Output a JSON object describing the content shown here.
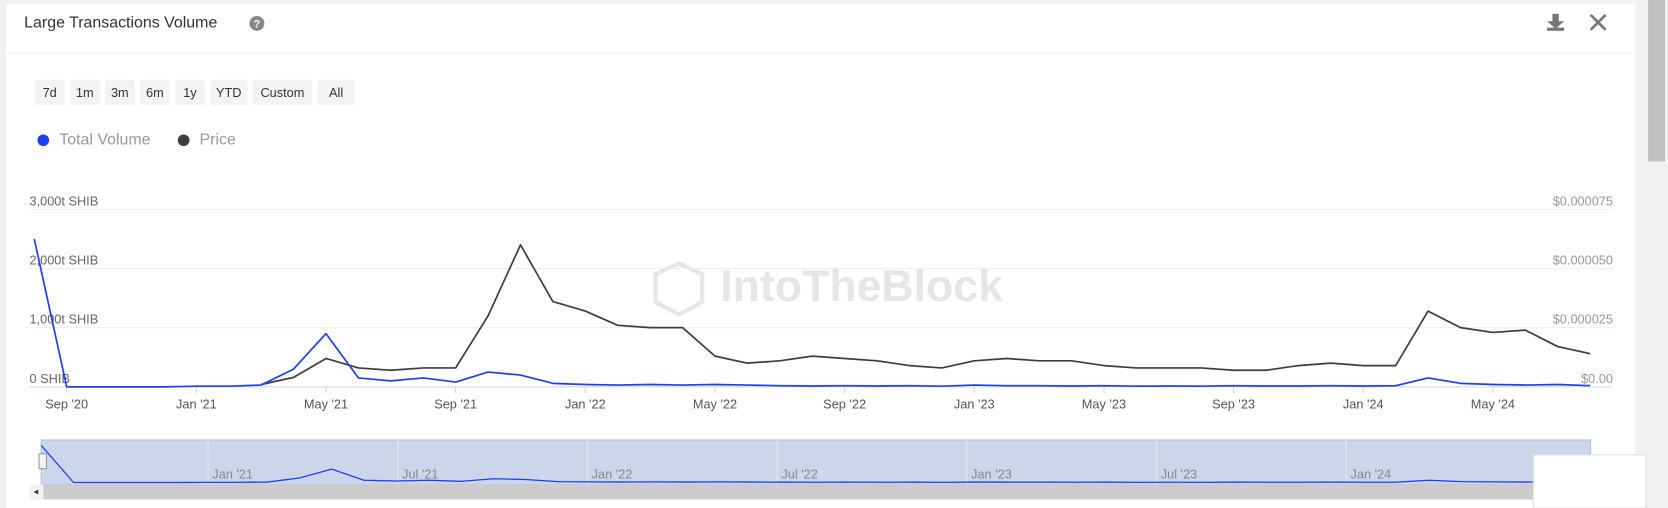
{
  "header": {
    "title": "Large Transactions Volume",
    "range_buttons": [
      "7d",
      "1m",
      "3m",
      "6m",
      "1y",
      "YTD",
      "Custom",
      "All"
    ]
  },
  "watermark": "IntoTheBlock",
  "chart_data": {
    "type": "line",
    "categories": [
      null,
      "Sep '20",
      null,
      null,
      null,
      "Jan '21",
      null,
      null,
      null,
      "May '21",
      null,
      null,
      null,
      "Sep '21",
      null,
      null,
      null,
      "Jan '22",
      null,
      null,
      null,
      "May '22",
      null,
      null,
      null,
      "Sep '22",
      null,
      null,
      null,
      "Jan '23",
      null,
      null,
      null,
      "May '23",
      null,
      null,
      null,
      "Sep '23",
      null,
      null,
      null,
      "Jan '24",
      null,
      null,
      null,
      "May '24",
      null,
      null,
      null
    ],
    "series": [
      {
        "name": "Total Volume",
        "color": "#1e3ff0",
        "axis": "y",
        "values": [
          2500,
          0,
          0,
          0,
          0,
          10,
          10,
          30,
          300,
          900,
          150,
          100,
          150,
          80,
          250,
          200,
          60,
          40,
          30,
          40,
          30,
          40,
          30,
          20,
          15,
          20,
          15,
          20,
          10,
          30,
          20,
          20,
          15,
          20,
          10,
          15,
          10,
          20,
          15,
          15,
          20,
          15,
          20,
          150,
          60,
          40,
          30,
          40,
          20
        ]
      },
      {
        "name": "Price",
        "color": "#3d3d3d",
        "axis": "y2",
        "values": [
          null,
          null,
          null,
          null,
          null,
          null,
          null,
          1e-06,
          4e-06,
          1.2e-05,
          8e-06,
          7e-06,
          8e-06,
          8e-06,
          3e-05,
          6e-05,
          3.6e-05,
          3.2e-05,
          2.6e-05,
          2.5e-05,
          2.5e-05,
          1.3e-05,
          1e-05,
          1.1e-05,
          1.3e-05,
          1.2e-05,
          1.1e-05,
          9e-06,
          8e-06,
          1.1e-05,
          1.2e-05,
          1.1e-05,
          1.1e-05,
          9e-06,
          8e-06,
          8e-06,
          8e-06,
          7e-06,
          7e-06,
          9e-06,
          1e-05,
          9e-06,
          9e-06,
          3.2e-05,
          2.5e-05,
          2.3e-05,
          2.4e-05,
          1.7e-05,
          1.4e-05
        ]
      }
    ],
    "ylim": [
      0,
      3000
    ],
    "yticks": [
      {
        "value": 0,
        "label": "0 SHIB"
      },
      {
        "value": 1000,
        "label": "1,000t SHIB"
      },
      {
        "value": 2000,
        "label": "2,000t SHIB"
      },
      {
        "value": 3000,
        "label": "3,000t SHIB"
      }
    ],
    "y2lim": [
      0,
      7.5e-05
    ],
    "y2ticks": [
      {
        "value": 0,
        "label": "$0.00"
      },
      {
        "value": 2.5e-05,
        "label": "$0.000025"
      },
      {
        "value": 5e-05,
        "label": "$0.000050"
      },
      {
        "value": 7.5e-05,
        "label": "$0.000075"
      }
    ],
    "grid": true,
    "legend": "top-left"
  },
  "navigator": {
    "labels": [
      "Jan '21",
      "Jul '21",
      "Jan '22",
      "Jul '22",
      "Jan '23",
      "Jul '23",
      "Jan '24"
    ]
  }
}
